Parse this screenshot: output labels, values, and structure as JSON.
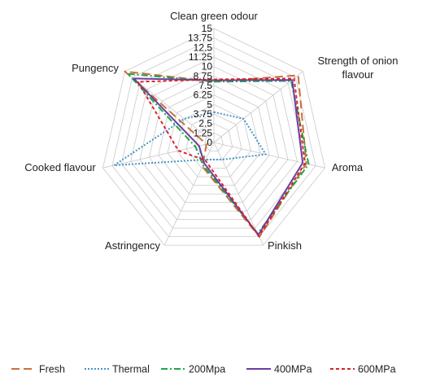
{
  "chart_data": {
    "type": "radar",
    "title": "",
    "axes": [
      "Clean green odour",
      "Strength of onion flavour",
      "Aroma",
      "Pinkish",
      "Astringency",
      "Cooked flavour",
      "Pungency"
    ],
    "axis_label_lines": [
      [
        "Clean green odour"
      ],
      [
        "Strength of onion",
        "flavour"
      ],
      [
        "Aroma"
      ],
      [
        "Pinkish"
      ],
      [
        "Astringency"
      ],
      [
        "Cooked flavour"
      ],
      [
        "Pungency"
      ]
    ],
    "ticks": [
      "0",
      "1.25",
      "2.5",
      "3.75",
      "5",
      "6.25",
      "7.5",
      "8.75",
      "10",
      "11.25",
      "12.5",
      "13.75",
      "15"
    ],
    "rmin": 0,
    "rmax": 15,
    "grid": true,
    "legend_position": "bottom",
    "series": [
      {
        "name": "Fresh",
        "color": "#c8703a",
        "dash": "10,5",
        "values": [
          8,
          14.2,
          12.5,
          13.8,
          3.5,
          1,
          15
        ]
      },
      {
        "name": "Thermal",
        "color": "#4a95c8",
        "dash": "2,2",
        "values": [
          4,
          5,
          7,
          2.5,
          2.5,
          13.5,
          5
        ]
      },
      {
        "name": "200Mpa",
        "color": "#1fa64a",
        "dash": "8,3,2,3",
        "values": [
          8,
          13,
          12.8,
          13.3,
          3.3,
          2.5,
          14.5
        ]
      },
      {
        "name": "400MPa",
        "color": "#6a3fa0",
        "dash": "",
        "values": [
          8.2,
          13.2,
          12,
          13.5,
          3,
          2,
          13.5
        ]
      },
      {
        "name": "600MPa",
        "color": "#d8242c",
        "dash": "4,3",
        "values": [
          8.3,
          13.5,
          12.3,
          13.7,
          2.6,
          4.8,
          12.8
        ]
      }
    ]
  }
}
